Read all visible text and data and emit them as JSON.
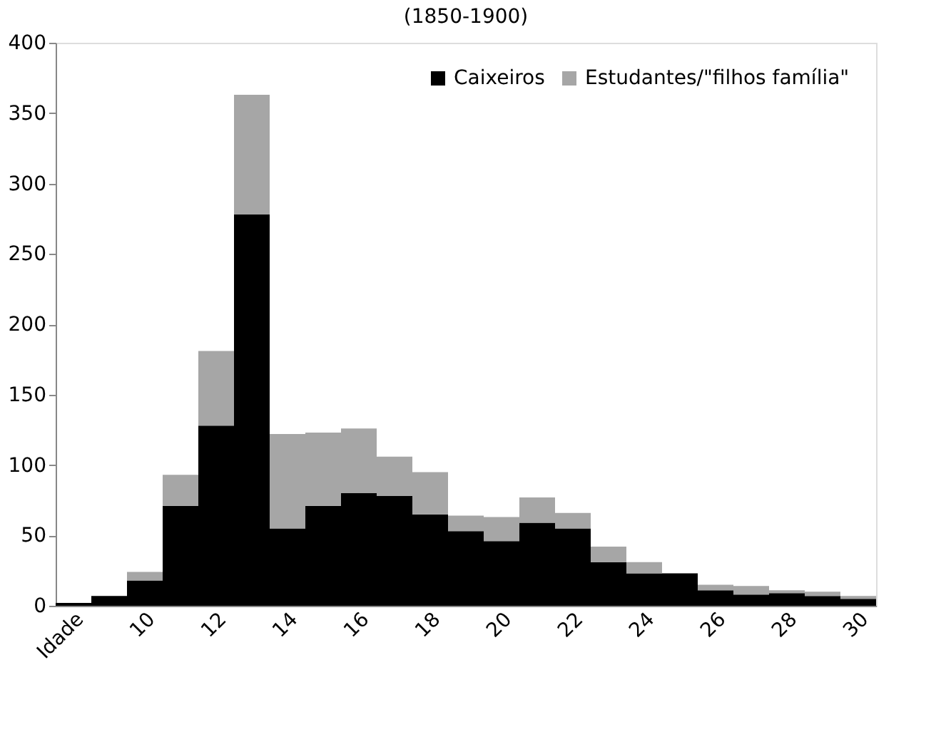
{
  "chart_data": {
    "type": "bar",
    "title": "(1850-1900)",
    "stacked": true,
    "legend": "top right",
    "grid": false,
    "categories": [
      "Idade",
      null,
      "10",
      null,
      "12",
      null,
      "14",
      null,
      "16",
      null,
      "18",
      null,
      "20",
      null,
      "22",
      null,
      "24",
      null,
      "26",
      null,
      "28",
      null,
      "30"
    ],
    "series": [
      {
        "name": "Caixeiros",
        "color": "#000000",
        "values": [
          2,
          7,
          18,
          71,
          128,
          278,
          55,
          71,
          80,
          78,
          65,
          53,
          46,
          59,
          55,
          31,
          23,
          23,
          11,
          8,
          9,
          7,
          5
        ]
      },
      {
        "name": "Estudantes/\"filhos família\"",
        "color": "#a6a6a6",
        "values": [
          null,
          0,
          6,
          22,
          53,
          85,
          67,
          52,
          46,
          28,
          30,
          11,
          17,
          18,
          11,
          11,
          8,
          null,
          4,
          6,
          2,
          3,
          2
        ]
      }
    ],
    "ylim": [
      0,
      400
    ],
    "yticks": [
      0,
      50,
      100,
      150,
      200,
      250,
      300,
      350,
      400
    ]
  }
}
